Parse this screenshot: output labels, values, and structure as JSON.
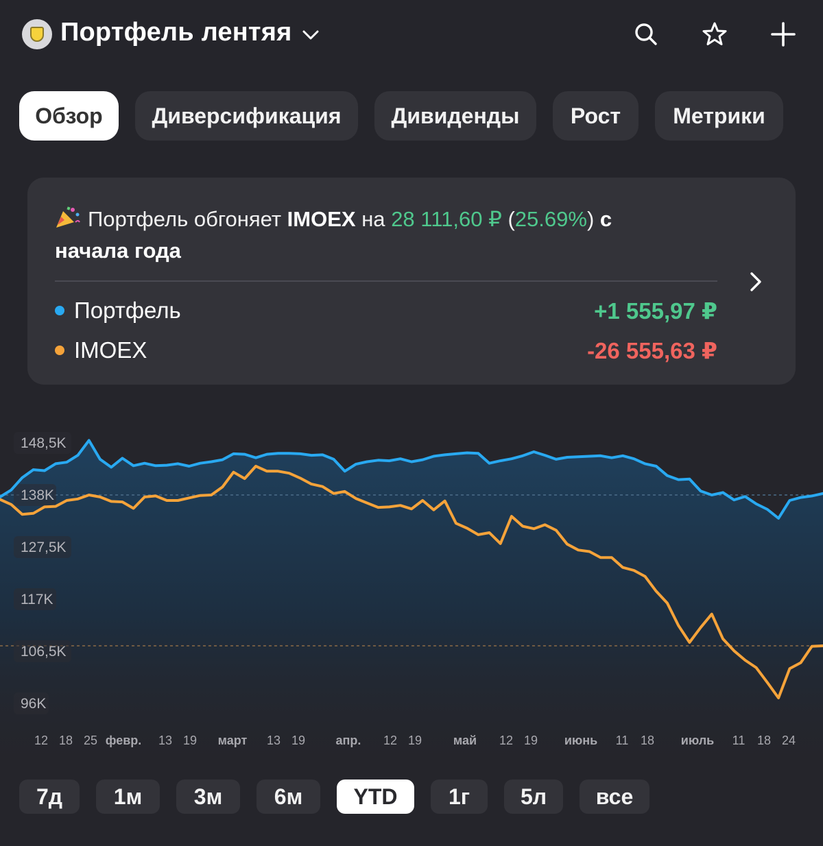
{
  "header": {
    "title": "Портфель лентяя",
    "icons": [
      "logo-icon",
      "chevron-down-icon",
      "search-icon",
      "star-icon",
      "plus-icon"
    ]
  },
  "tabs": [
    {
      "label": "Обзор",
      "active": true
    },
    {
      "label": "Диверсификация",
      "active": false
    },
    {
      "label": "Дивиденды",
      "active": false
    },
    {
      "label": "Рост",
      "active": false
    },
    {
      "label": "Метрики",
      "active": false
    }
  ],
  "summary": {
    "prefix": "Портфель обгоняет",
    "benchmark": "IMOEX",
    "on": "на",
    "diff_amount": "28 111,60 ₽",
    "paren_open": "(",
    "diff_percent": "25.69%",
    "paren_close": ")",
    "suffix": "с начала года",
    "rows": [
      {
        "name": "Портфель",
        "value": "+1 555,97 ₽",
        "color": "#29a9f1",
        "value_color": "#4fc88d"
      },
      {
        "name": "IMOEX",
        "value": "-26 555,63 ₽",
        "color": "#f5a33a",
        "value_color": "#f0645e"
      }
    ]
  },
  "chart_data": {
    "type": "line",
    "y_ticks": [
      "148,5K",
      "138K",
      "127,5K",
      "117K",
      "106,5K",
      "96K"
    ],
    "y_tick_values": [
      148500,
      138000,
      127500,
      117000,
      106500,
      96000
    ],
    "ylim": [
      96000,
      148500
    ],
    "x_labels": [
      "12",
      "18",
      "25",
      "февр.",
      "13",
      "19",
      "март",
      "13",
      "19",
      "апр.",
      "12",
      "19",
      "май",
      "12",
      "19",
      "июнь",
      "11",
      "18",
      "июль",
      "11",
      "18",
      "24"
    ],
    "grid": false,
    "series": [
      {
        "name": "Портфель",
        "color": "#29a9f1",
        "values": [
          137600,
          139000,
          141500,
          143100,
          142900,
          144300,
          144600,
          146000,
          149000,
          145200,
          143600,
          145400,
          143900,
          144400,
          143900,
          144000,
          144300,
          143800,
          144400,
          144700,
          145100,
          146300,
          146200,
          145500,
          146200,
          146400,
          146400,
          146300,
          146000,
          146100,
          145200,
          142800,
          144200,
          144700,
          145000,
          144900,
          145300,
          144700,
          145100,
          145800,
          146100,
          146300,
          146500,
          146400,
          144400,
          144900,
          145300,
          145900,
          146700,
          146000,
          145200,
          145600,
          145700,
          145800,
          145900,
          145500,
          145900,
          145300,
          144300,
          143800,
          141900,
          141100,
          141200,
          138800,
          138000,
          138500,
          137000,
          137700,
          136200,
          135100,
          133300,
          136900,
          137500,
          137800,
          138300
        ]
      },
      {
        "name": "IMOEX",
        "color": "#f5a33a",
        "values": [
          137100,
          136100,
          134100,
          134300,
          135600,
          135700,
          136900,
          137200,
          138000,
          137600,
          136700,
          136600,
          135300,
          137600,
          137800,
          136900,
          136900,
          137400,
          137900,
          138000,
          139600,
          142600,
          141300,
          143800,
          142800,
          142800,
          142400,
          141400,
          140200,
          139700,
          138300,
          138700,
          137300,
          136400,
          135500,
          135600,
          135900,
          135200,
          136900,
          135000,
          136800,
          132300,
          131300,
          130000,
          130400,
          128200,
          133700,
          131700,
          131200,
          132000,
          130900,
          128100,
          126900,
          126600,
          125400,
          125400,
          123400,
          122800,
          121600,
          118600,
          116200,
          111700,
          108300,
          111300,
          114000,
          109000,
          106600,
          104700,
          103200,
          100200,
          97100,
          103000,
          104200,
          107500,
          107600
        ]
      }
    ],
    "dashed_levels": [
      138000,
      107600
    ]
  },
  "periods": [
    {
      "label": "7д",
      "active": false
    },
    {
      "label": "1м",
      "active": false
    },
    {
      "label": "3м",
      "active": false
    },
    {
      "label": "6м",
      "active": false
    },
    {
      "label": "YTD",
      "active": true
    },
    {
      "label": "1г",
      "active": false
    },
    {
      "label": "5л",
      "active": false
    },
    {
      "label": "все",
      "active": false
    }
  ]
}
